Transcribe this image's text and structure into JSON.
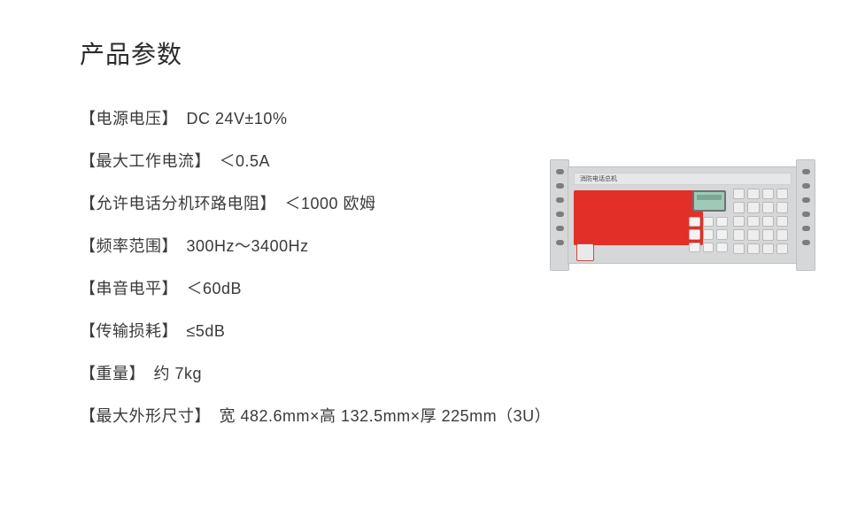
{
  "title": "产品参数",
  "specs": [
    {
      "label": "【电源电压】",
      "value": "DC 24V±10%"
    },
    {
      "label": "【最大工作电流】",
      "value": "＜0.5A"
    },
    {
      "label": "【允许电话分机环路电阻】",
      "value": "＜1000 欧姆"
    },
    {
      "label": "【频率范围】",
      "value": "300Hz～3400Hz"
    },
    {
      "label": "【串音电平】",
      "value": "＜60dB"
    },
    {
      "label": "【传输损耗】",
      "value": "≤5dB"
    },
    {
      "label": "【重量】",
      "value": "约 7kg"
    },
    {
      "label": "【最大外形尺寸】",
      "value": "宽 482.6mm×高 132.5mm×厚 225mm（3U）"
    }
  ],
  "device": {
    "body_color": "#d6d7d8",
    "panel_color": "#e22f27",
    "lcd_color": "#9fcab8",
    "top_label": "消防电话总机"
  }
}
